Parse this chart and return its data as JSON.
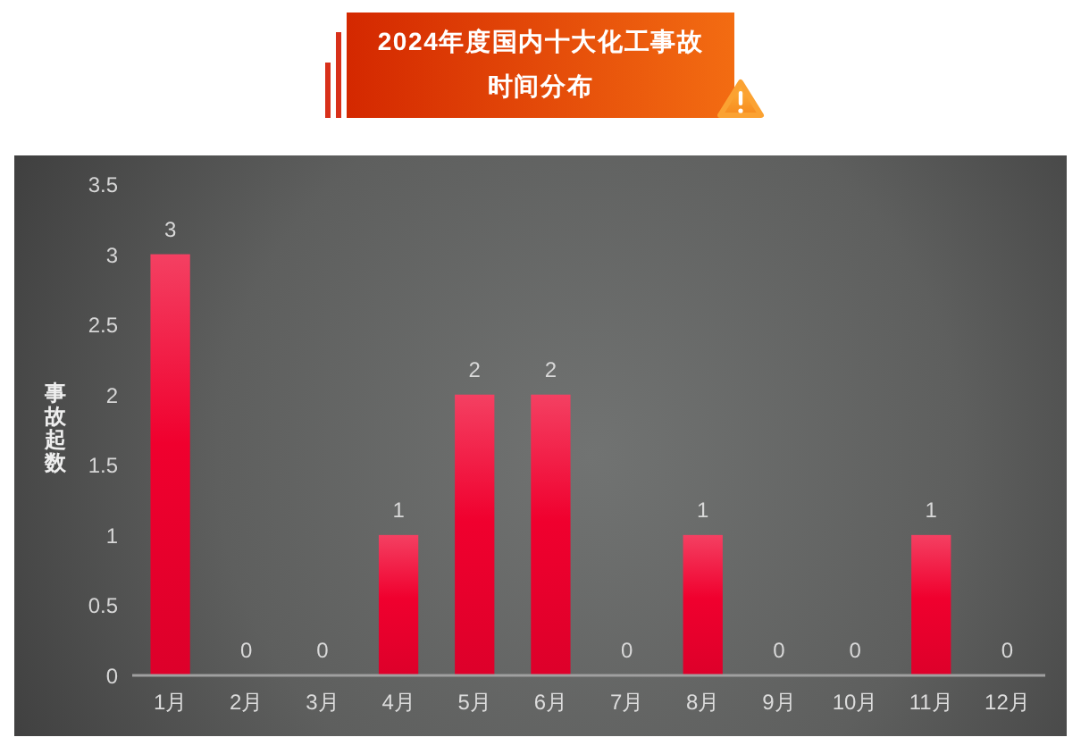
{
  "chart_data": {
    "type": "bar",
    "title": "2024年度国内十大化工事故时间分布",
    "ylabel": "事故起数",
    "categories": [
      "1月",
      "2月",
      "3月",
      "4月",
      "5月",
      "6月",
      "7月",
      "8月",
      "9月",
      "10月",
      "11月",
      "12月"
    ],
    "values": [
      3,
      0,
      0,
      1,
      2,
      2,
      0,
      1,
      0,
      0,
      1,
      0
    ],
    "color": "#f0002e",
    "ylim": [
      0,
      3.5
    ],
    "yticks": [
      0,
      0.5,
      1,
      1.5,
      2,
      2.5,
      3,
      3.5
    ],
    "data_labels": true
  }
}
